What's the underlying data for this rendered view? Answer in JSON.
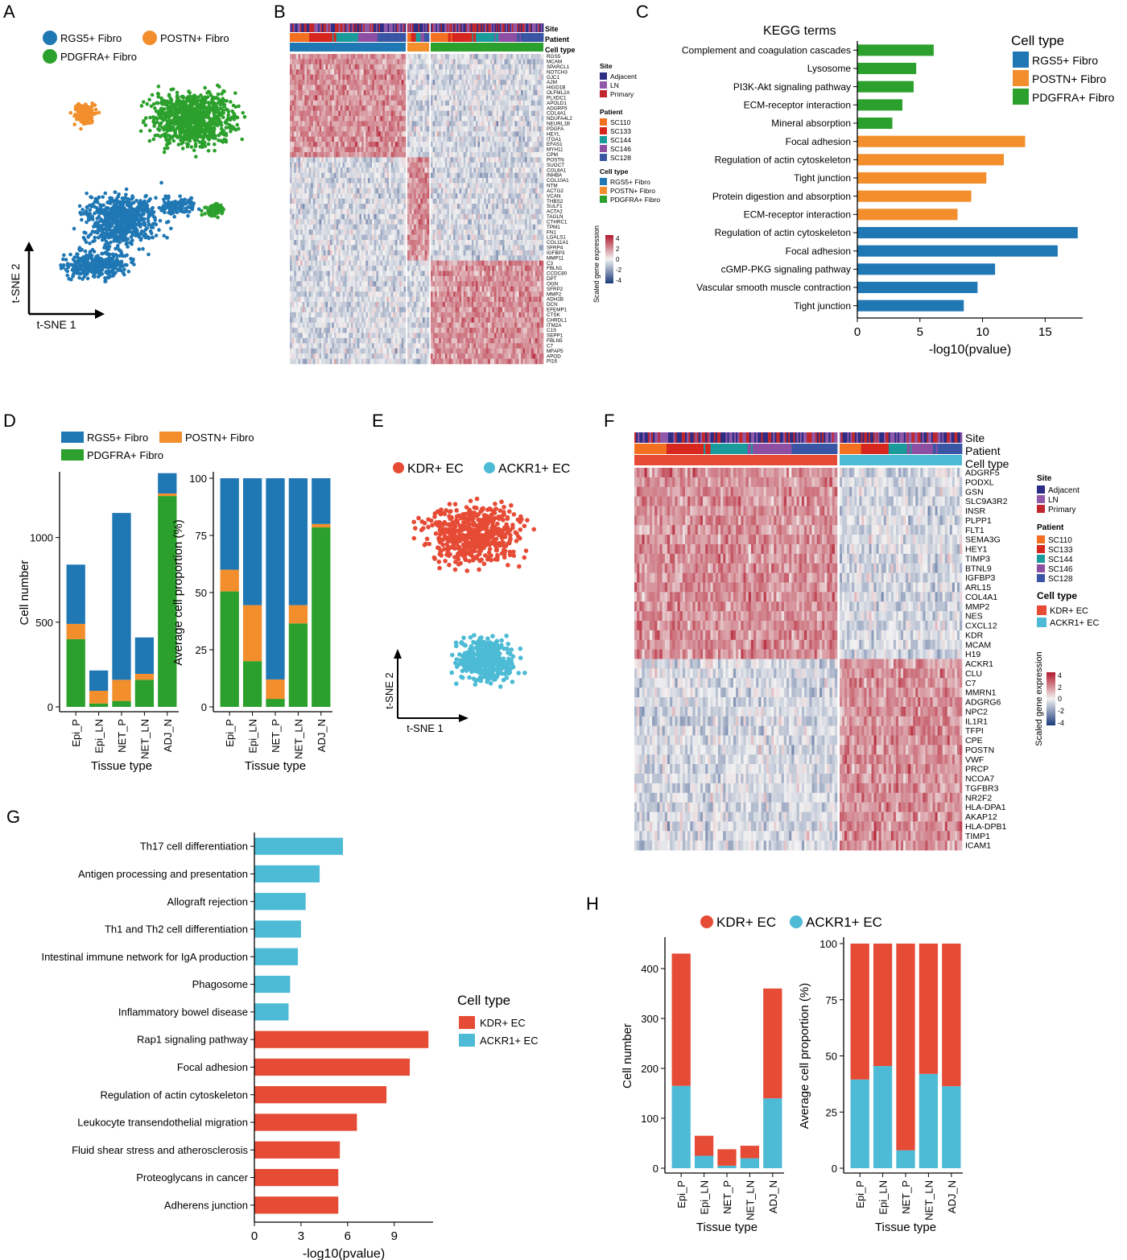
{
  "panels": {
    "A": {
      "letter": "A",
      "legend": [
        {
          "label": "RGS5+ Fibro",
          "color": "#1f77b4"
        },
        {
          "label": "POSTN+ Fibro",
          "color": "#f28e2b"
        },
        {
          "label": "PDGFRA+ Fibro",
          "color": "#2ca02c"
        }
      ],
      "axis_y": "t-SNE 2",
      "axis_x": "t-SNE 1"
    },
    "B": {
      "letter": "B",
      "row_labels": [
        "Site",
        "Patient",
        "Cell type"
      ],
      "genes": [
        "RGS5",
        "MCAM",
        "SPARCL1",
        "NOTCH3",
        "GJC1",
        "A2M",
        "HIGD1B",
        "OLFML2A",
        "PLXDC1",
        "APOLD1",
        "ADGRF5",
        "COL4A1",
        "NDUFA4L2",
        "NEURL1B",
        "PDGFA",
        "HEYL",
        "ITGA1",
        "EFAS1",
        "MYH11",
        "CPM",
        "POSTN",
        "SUGCT",
        "COL8A1",
        "INHBA",
        "COL10A1",
        "NTM",
        "ACTG2",
        "VCAN",
        "THBS2",
        "SULF1",
        "ACTA2",
        "TAGLN",
        "CTHRC1",
        "TPM1",
        "FN1",
        "LGALS1",
        "COL11A1",
        "SFRP4",
        "IGFBP3",
        "MMP11",
        "C3",
        "FBLN1",
        "CCDC80",
        "DPT",
        "OGN",
        "SFRP2",
        "MMP2",
        "ADH1B",
        "DCN",
        "EFEMP1",
        "CTSK",
        "CHRDL1",
        "ITM2A",
        "C1S",
        "SEPP1",
        "FBLN5",
        "C7",
        "MFAP5",
        "APOD",
        "PI16"
      ],
      "legend_site_title": "Site",
      "legend_site": [
        {
          "label": "Adjacent",
          "color": "#2c2d84"
        },
        {
          "label": "LN",
          "color": "#8f58a8"
        },
        {
          "label": "Primary",
          "color": "#c0282d"
        }
      ],
      "legend_patient_title": "Patient",
      "legend_patient": [
        {
          "label": "SC110",
          "color": "#f37021"
        },
        {
          "label": "SC133",
          "color": "#d7261e"
        },
        {
          "label": "SC144",
          "color": "#1b9a9b"
        },
        {
          "label": "SC146",
          "color": "#8e4fa3"
        },
        {
          "label": "SC128",
          "color": "#3a55a4"
        }
      ],
      "legend_celltype_title": "Cell type",
      "legend_celltype": [
        {
          "label": "RGS5+ Fibro",
          "color": "#1f77b4"
        },
        {
          "label": "POSTN+ Fibro",
          "color": "#f28e2b"
        },
        {
          "label": "PDGFRA+ Fibro",
          "color": "#2ca02c"
        }
      ],
      "scale_title": "Scaled gene expression",
      "scale_ticks": [
        "4",
        "2",
        "0",
        "-2",
        "-4"
      ]
    },
    "C": {
      "letter": "C",
      "title": "KEGG terms",
      "legend_title": "Cell type",
      "legend": [
        {
          "label": "RGS5+ Fibro",
          "color": "#1f77b4"
        },
        {
          "label": "POSTN+ Fibro",
          "color": "#f28e2b"
        },
        {
          "label": "PDGFRA+ Fibro",
          "color": "#2ca02c"
        }
      ],
      "xlabel": "-log10(pvalue)"
    },
    "D": {
      "letter": "D",
      "legend": [
        {
          "label": "RGS5+ Fibro",
          "color": "#1f77b4"
        },
        {
          "label": "POSTN+ Fibro",
          "color": "#f28e2b"
        },
        {
          "label": "PDGFRA+ Fibro",
          "color": "#2ca02c"
        }
      ]
    },
    "E": {
      "letter": "E",
      "legend": [
        {
          "label": "KDR+ EC",
          "color": "#e64b35"
        },
        {
          "label": "ACKR1+ EC",
          "color": "#4dbbd5"
        }
      ],
      "axis_y": "t-SNE 2",
      "axis_x": "t-SNE 1"
    },
    "F": {
      "letter": "F",
      "row_labels": [
        "Site",
        "Patient",
        "Cell type"
      ],
      "genes": [
        "ADGRF5",
        "PODXL",
        "GSN",
        "SLC9A3R2",
        "INSR",
        "PLPP1",
        "FLT1",
        "SEMA3G",
        "HEY1",
        "TIMP3",
        "BTNL9",
        "IGFBP3",
        "ARL15",
        "COL4A1",
        "MMP2",
        "NES",
        "CXCL12",
        "KDR",
        "MCAM",
        "H19",
        "ACKR1",
        "CLU",
        "C7",
        "MMRN1",
        "ADGRG6",
        "NPC2",
        "IL1R1",
        "TFPI",
        "CPE",
        "POSTN",
        "VWF",
        "PRCP",
        "NCOA7",
        "TGFBR3",
        "NR2F2",
        "HLA-DPA1",
        "AKAP12",
        "HLA-DPB1",
        "TIMP1",
        "ICAM1"
      ],
      "legend_site_title": "Site",
      "legend_site": [
        {
          "label": "Adjacent",
          "color": "#2c2d84"
        },
        {
          "label": "LN",
          "color": "#8f58a8"
        },
        {
          "label": "Primary",
          "color": "#c0282d"
        }
      ],
      "legend_patient_title": "Patient",
      "legend_patient": [
        {
          "label": "SC110",
          "color": "#f37021"
        },
        {
          "label": "SC133",
          "color": "#d7261e"
        },
        {
          "label": "SC144",
          "color": "#1b9a9b"
        },
        {
          "label": "SC146",
          "color": "#8e4fa3"
        },
        {
          "label": "SC128",
          "color": "#3a55a4"
        }
      ],
      "legend_celltype_title": "Cell type",
      "legend_celltype": [
        {
          "label": "KDR+ EC",
          "color": "#e64b35"
        },
        {
          "label": "ACKR1+ EC",
          "color": "#4dbbd5"
        }
      ],
      "scale_title": "Scaled gene expression",
      "scale_ticks": [
        "4",
        "2",
        "0",
        "-2",
        "-4"
      ]
    },
    "G": {
      "letter": "G",
      "legend_title": "Cell type",
      "legend": [
        {
          "label": "KDR+ EC",
          "color": "#e64b35"
        },
        {
          "label": "ACKR1+ EC",
          "color": "#4dbbd5"
        }
      ],
      "xlabel": "-log10(pvalue)"
    },
    "H": {
      "letter": "H",
      "legend": [
        {
          "label": "KDR+ EC",
          "color": "#e64b35"
        },
        {
          "label": "ACKR1+ EC",
          "color": "#4dbbd5"
        }
      ]
    }
  },
  "chart_data": [
    {
      "id": "C",
      "type": "bar",
      "orientation": "horizontal",
      "title": "KEGG terms",
      "xlabel": "-log10(pvalue)",
      "xlim": [
        0,
        18
      ],
      "xticks": [
        0,
        5,
        10,
        15
      ],
      "categories": [
        "Complement and coagulation cascades",
        "Lysosome",
        "PI3K-Akt signaling pathway",
        "ECM-receptor interaction",
        "Mineral absorption",
        "Focal adhesion",
        "Regulation of actin cytoskeleton",
        "Tight junction",
        "Protein digestion and absorption",
        "ECM-receptor interaction",
        "Regulation of actin cytoskeleton",
        "Focal adhesion",
        "cGMP-PKG signaling pathway",
        "Vascular smooth muscle contraction",
        "Tight junction"
      ],
      "values": [
        6.1,
        4.7,
        4.5,
        3.6,
        2.8,
        13.4,
        11.7,
        10.3,
        9.1,
        8.0,
        17.6,
        16.0,
        11.0,
        9.6,
        8.5
      ],
      "groups": [
        "PDGFRA+ Fibro",
        "PDGFRA+ Fibro",
        "PDGFRA+ Fibro",
        "PDGFRA+ Fibro",
        "PDGFRA+ Fibro",
        "POSTN+ Fibro",
        "POSTN+ Fibro",
        "POSTN+ Fibro",
        "POSTN+ Fibro",
        "POSTN+ Fibro",
        "RGS5+ Fibro",
        "RGS5+ Fibro",
        "RGS5+ Fibro",
        "RGS5+ Fibro",
        "RGS5+ Fibro"
      ]
    },
    {
      "id": "D-left",
      "type": "bar",
      "stacked": true,
      "xlabel": "Tissue type",
      "ylabel": "Cell number",
      "ylim": [
        0,
        1350
      ],
      "yticks": [
        0,
        500,
        1000
      ],
      "categories": [
        "Epi_P",
        "Epi_LN",
        "NET_P",
        "NET_LN",
        "ADJ_N"
      ],
      "series": [
        {
          "name": "PDGFRA+ Fibro",
          "values": [
            400,
            20,
            35,
            160,
            1245
          ]
        },
        {
          "name": "POSTN+ Fibro",
          "values": [
            90,
            75,
            125,
            35,
            15
          ]
        },
        {
          "name": "RGS5+ Fibro",
          "values": [
            350,
            120,
            985,
            215,
            120
          ]
        }
      ]
    },
    {
      "id": "D-right",
      "type": "bar",
      "stacked": true,
      "xlabel": "Tissue type",
      "ylabel": "Average cell proportion (%)",
      "ylim": [
        0,
        100
      ],
      "yticks": [
        0,
        25,
        50,
        75,
        100
      ],
      "categories": [
        "Epi_P",
        "Epi_LN",
        "NET_P",
        "NET_LN",
        "ADJ_N"
      ],
      "series": [
        {
          "name": "PDGFRA+ Fibro",
          "values": [
            50.5,
            20,
            3.5,
            36.5,
            78.5
          ]
        },
        {
          "name": "POSTN+ Fibro",
          "values": [
            9.5,
            24.5,
            8.5,
            8,
            1.5
          ]
        },
        {
          "name": "RGS5+ Fibro",
          "values": [
            40,
            55.5,
            88,
            55.5,
            20
          ]
        }
      ]
    },
    {
      "id": "G",
      "type": "bar",
      "orientation": "horizontal",
      "xlabel": "-log10(pvalue)",
      "xlim": [
        0,
        11.5
      ],
      "xticks": [
        0,
        3,
        6,
        9
      ],
      "categories": [
        "Th17 cell differentiation",
        "Antigen processing and presentation",
        "Allograft rejection",
        "Th1 and Th2 cell differentiation",
        "Intestinal immune network for IgA production",
        "Phagosome",
        "Inflammatory bowel disease",
        "Rap1 signaling pathway",
        "Focal adhesion",
        "Regulation of actin cytoskeleton",
        "Leukocyte transendothelial migration",
        "Fluid shear stress and atherosclerosis",
        "Proteoglycans in cancer",
        "Adherens junction"
      ],
      "values": [
        5.7,
        4.2,
        3.3,
        3.0,
        2.8,
        2.3,
        2.2,
        11.2,
        10.0,
        8.5,
        6.6,
        5.5,
        5.4,
        5.4
      ],
      "groups": [
        "ACKR1+ EC",
        "ACKR1+ EC",
        "ACKR1+ EC",
        "ACKR1+ EC",
        "ACKR1+ EC",
        "ACKR1+ EC",
        "ACKR1+ EC",
        "KDR+ EC",
        "KDR+ EC",
        "KDR+ EC",
        "KDR+ EC",
        "KDR+ EC",
        "KDR+ EC",
        "KDR+ EC"
      ]
    },
    {
      "id": "H-left",
      "type": "bar",
      "stacked": true,
      "xlabel": "Tissue type",
      "ylabel": "Cell number",
      "ylim": [
        0,
        450
      ],
      "yticks": [
        0,
        100,
        200,
        300,
        400
      ],
      "categories": [
        "Epi_P",
        "Epi_LN",
        "NET_P",
        "NET_LN",
        "ADJ_N"
      ],
      "series": [
        {
          "name": "ACKR1+ EC",
          "values": [
            165,
            25,
            5,
            20,
            140
          ]
        },
        {
          "name": "KDR+ EC",
          "values": [
            265,
            40,
            33,
            25,
            220
          ]
        }
      ]
    },
    {
      "id": "H-right",
      "type": "bar",
      "stacked": true,
      "xlabel": "Tissue type",
      "ylabel": "Average cell proportion (%)",
      "ylim": [
        0,
        100
      ],
      "yticks": [
        0,
        25,
        50,
        75,
        100
      ],
      "categories": [
        "Epi_P",
        "Epi_LN",
        "NET_P",
        "NET_LN",
        "ADJ_N"
      ],
      "series": [
        {
          "name": "ACKR1+ EC",
          "values": [
            39.5,
            45.5,
            8,
            42,
            36.5
          ]
        },
        {
          "name": "KDR+ EC",
          "values": [
            60.5,
            54.5,
            92,
            58,
            63.5
          ]
        }
      ]
    }
  ]
}
